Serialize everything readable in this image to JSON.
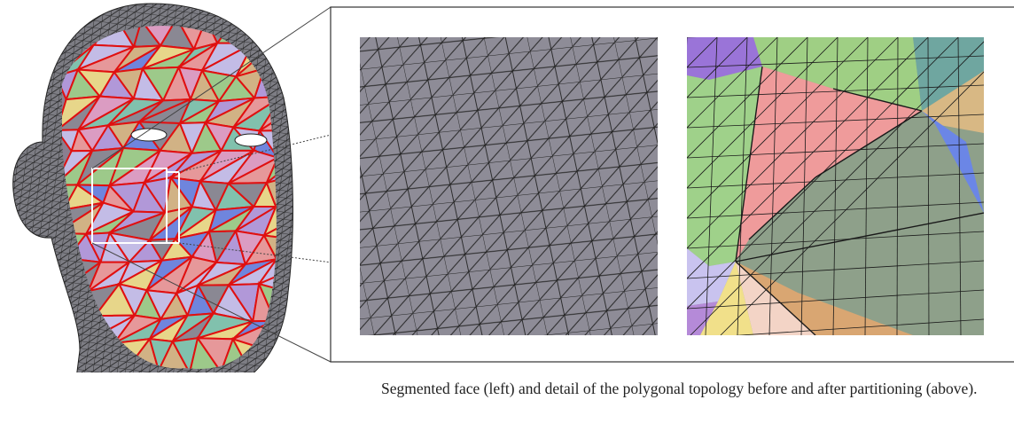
{
  "caption": "Segmented face (left) and detail of the polygonal topology before and after partitioning (above)."
}
